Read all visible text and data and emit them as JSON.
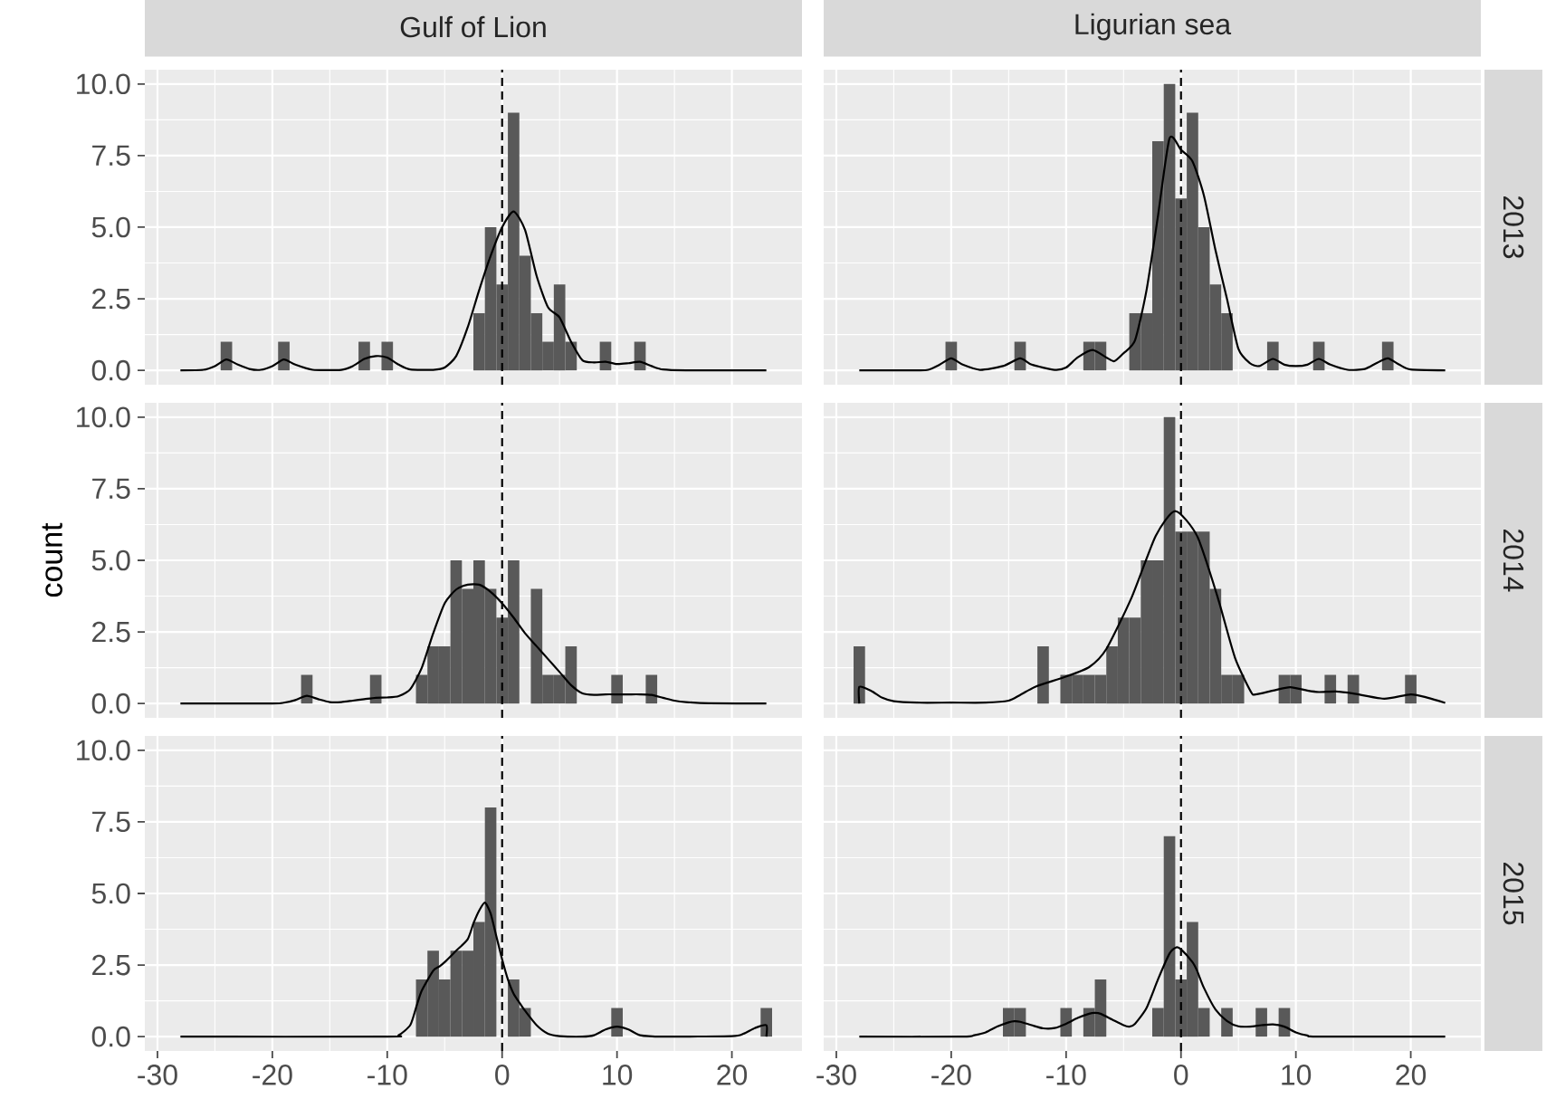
{
  "chart_data": [
    {
      "type": "histogram",
      "title": "Gulf of Lion",
      "xlim": [
        -31.1,
        26.1
      ],
      "ylim": [
        -0.5,
        10.5
      ],
      "xticks": [
        -30,
        -20,
        -10,
        0,
        10,
        20
      ],
      "yticks": [
        {
          "value": 0,
          "label": "0.0"
        },
        {
          "value": 2.5,
          "label": "2.5"
        },
        {
          "value": 5,
          "label": "5.0"
        },
        {
          "value": 7.5,
          "label": "7.5"
        },
        {
          "value": 10,
          "label": "10.0"
        }
      ],
      "tick_labels": "y",
      "grid": true,
      "ref_lines": [
        {
          "axis": "x",
          "value": 0,
          "color": "#000000",
          "line_style": "dashed"
        }
      ],
      "series": [
        {
          "type": "histogram",
          "color": "#595959",
          "bins": [
            -28.5,
            -27.5,
            -26.5,
            -25.5,
            -24.5,
            -23.5,
            -22.5,
            -21.5,
            -20.5,
            -19.5,
            -18.5,
            -17.5,
            -16.5,
            -15.5,
            -14.5,
            -13.5,
            -12.5,
            -11.5,
            -10.5,
            -9.5,
            -8.5,
            -7.5,
            -6.5,
            -5.5,
            -4.5,
            -3.5,
            -2.5,
            -1.5,
            -0.5,
            0.5,
            1.5,
            2.5,
            3.5,
            4.5,
            5.5,
            6.5,
            7.5,
            8.5,
            9.5,
            10.5,
            11.5,
            12.5,
            13.5,
            14.5,
            15.5,
            16.5,
            17.5,
            18.5,
            19.5,
            20.5,
            21.5,
            22.5,
            23.5
          ],
          "values": [
            0,
            0,
            0,
            0,
            1,
            0,
            0,
            0,
            0,
            1,
            0,
            0,
            0,
            0,
            0,
            0,
            1,
            0,
            1,
            0,
            0,
            0,
            0,
            0,
            0,
            0,
            2,
            5,
            3,
            9,
            4,
            2,
            1,
            3,
            1,
            0,
            0,
            1,
            0,
            0,
            1,
            0,
            0,
            0,
            0,
            0,
            0,
            0,
            0,
            0,
            0,
            0
          ]
        },
        {
          "type": "line",
          "color": "#000000",
          "x": [
            -28,
            -26,
            -25,
            -24,
            -23,
            -22,
            -21,
            -20,
            -19,
            -18,
            -16.5,
            -14,
            -13,
            -12,
            -11,
            -10,
            -9,
            -8,
            -6,
            -5,
            -4,
            -3,
            -2,
            -1,
            0,
            1,
            2,
            3,
            4,
            5,
            6,
            7,
            8,
            9,
            10,
            11,
            12,
            13,
            14,
            16,
            23
          ],
          "values": [
            0,
            0.02,
            0.15,
            0.38,
            0.2,
            0.05,
            0.02,
            0.15,
            0.38,
            0.2,
            0.02,
            0.02,
            0.15,
            0.4,
            0.5,
            0.45,
            0.2,
            0.03,
            0.02,
            0.1,
            0.5,
            1.5,
            2.8,
            4.0,
            5.0,
            5.55,
            4.9,
            3.3,
            2.2,
            1.85,
            1.0,
            0.35,
            0.28,
            0.3,
            0.22,
            0.25,
            0.3,
            0.15,
            0.03,
            0,
            0
          ]
        }
      ]
    },
    {
      "type": "histogram",
      "title": "Ligurian sea",
      "y2label": "2013",
      "xlim": [
        -31.1,
        26.1
      ],
      "ylim": [
        -0.5,
        10.5
      ],
      "xticks": [
        -30,
        -20,
        -10,
        0,
        10,
        20
      ],
      "yticks": [
        0,
        2.5,
        5,
        7.5,
        10
      ],
      "tick_labels": false,
      "grid": true,
      "ref_lines": [
        {
          "axis": "x",
          "value": 0,
          "color": "#000000",
          "line_style": "dashed"
        }
      ],
      "series": [
        {
          "type": "histogram",
          "color": "#595959",
          "bins": [
            -28.5,
            -27.5,
            -26.5,
            -25.5,
            -24.5,
            -23.5,
            -22.5,
            -21.5,
            -20.5,
            -19.5,
            -18.5,
            -17.5,
            -16.5,
            -15.5,
            -14.5,
            -13.5,
            -12.5,
            -11.5,
            -10.5,
            -9.5,
            -8.5,
            -7.5,
            -6.5,
            -5.5,
            -4.5,
            -3.5,
            -2.5,
            -1.5,
            -0.5,
            0.5,
            1.5,
            2.5,
            3.5,
            4.5,
            5.5,
            6.5,
            7.5,
            8.5,
            9.5,
            10.5,
            11.5,
            12.5,
            13.5,
            14.5,
            15.5,
            16.5,
            17.5,
            18.5,
            19.5,
            20.5,
            21.5,
            22.5,
            23.5
          ],
          "values": [
            0,
            0,
            0,
            0,
            0,
            0,
            0,
            0,
            1,
            0,
            0,
            0,
            0,
            0,
            1,
            0,
            0,
            0,
            0,
            0,
            1,
            1,
            0,
            0,
            2,
            2,
            8,
            10,
            6,
            9,
            5,
            3,
            2,
            0,
            0,
            0,
            1,
            0,
            0,
            0,
            1,
            0,
            0,
            0,
            0,
            0,
            1,
            0,
            0,
            0,
            0,
            0
          ]
        },
        {
          "type": "line",
          "color": "#000000",
          "x": [
            -28,
            -23,
            -22,
            -21,
            -20,
            -19,
            -17.5,
            -15.5,
            -14,
            -13,
            -11,
            -10,
            -9,
            -7.7,
            -6.5,
            -5.8,
            -5,
            -4,
            -3,
            -2,
            -1,
            0,
            1,
            2,
            3,
            4,
            5,
            6,
            6.8,
            8,
            9,
            10,
            11,
            12,
            13,
            14.5,
            16,
            17,
            18,
            19,
            20,
            23
          ],
          "values": [
            0,
            0,
            0.02,
            0.2,
            0.42,
            0.2,
            0.02,
            0.15,
            0.42,
            0.2,
            0.02,
            0.1,
            0.45,
            0.71,
            0.45,
            0.32,
            0.6,
            1.05,
            2.8,
            5.4,
            8.1,
            7.7,
            7.3,
            6.1,
            4.2,
            2.5,
            0.75,
            0.25,
            0.15,
            0.4,
            0.2,
            0.15,
            0.2,
            0.4,
            0.2,
            0.02,
            0.05,
            0.25,
            0.42,
            0.2,
            0.03,
            0
          ]
        }
      ]
    },
    {
      "type": "histogram",
      "ylabel": "count",
      "xlim": [
        -31.1,
        26.1
      ],
      "ylim": [
        -0.5,
        10.5
      ],
      "xticks": [
        -30,
        -20,
        -10,
        0,
        10,
        20
      ],
      "yticks": [
        {
          "value": 0,
          "label": "0.0"
        },
        {
          "value": 2.5,
          "label": "2.5"
        },
        {
          "value": 5,
          "label": "5.0"
        },
        {
          "value": 7.5,
          "label": "7.5"
        },
        {
          "value": 10,
          "label": "10.0"
        }
      ],
      "tick_labels": "y",
      "grid": true,
      "ref_lines": [
        {
          "axis": "x",
          "value": 0,
          "color": "#000000",
          "line_style": "dashed"
        }
      ],
      "series": [
        {
          "type": "histogram",
          "color": "#595959",
          "bins": [
            -28.5,
            -27.5,
            -26.5,
            -25.5,
            -24.5,
            -23.5,
            -22.5,
            -21.5,
            -20.5,
            -19.5,
            -18.5,
            -17.5,
            -16.5,
            -15.5,
            -14.5,
            -13.5,
            -12.5,
            -11.5,
            -10.5,
            -9.5,
            -8.5,
            -7.5,
            -6.5,
            -5.5,
            -4.5,
            -3.5,
            -2.5,
            -1.5,
            -0.5,
            0.5,
            1.5,
            2.5,
            3.5,
            4.5,
            5.5,
            6.5,
            7.5,
            8.5,
            9.5,
            10.5,
            11.5,
            12.5,
            13.5,
            14.5,
            15.5,
            16.5,
            17.5,
            18.5,
            19.5,
            20.5,
            21.5,
            22.5,
            23.5
          ],
          "values": [
            0,
            0,
            0,
            0,
            0,
            0,
            0,
            0,
            0,
            0,
            0,
            1,
            0,
            0,
            0,
            0,
            0,
            1,
            0,
            0,
            0,
            1,
            2,
            2,
            5,
            4,
            5,
            4,
            3,
            5,
            0,
            4,
            1,
            1,
            2,
            0,
            0,
            0,
            1,
            0,
            0,
            1,
            0,
            0,
            0,
            0,
            0,
            0,
            0,
            0,
            0,
            0
          ]
        },
        {
          "type": "line",
          "color": "#000000",
          "x": [
            -28,
            -20,
            -19,
            -18,
            -17,
            -16,
            -15,
            -14,
            -13,
            -12,
            -11,
            -10,
            -9,
            -8,
            -7,
            -6,
            -5,
            -4,
            -3,
            -2,
            -1,
            0,
            1,
            2,
            3,
            4,
            5,
            6,
            7,
            8,
            9,
            10,
            11,
            12,
            13,
            14,
            15,
            16,
            18,
            23
          ],
          "values": [
            0,
            0,
            0.03,
            0.12,
            0.27,
            0.15,
            0.05,
            0.05,
            0.1,
            0.15,
            0.2,
            0.21,
            0.26,
            0.5,
            1.24,
            2.45,
            3.5,
            3.98,
            4.15,
            4.15,
            3.9,
            3.5,
            3.0,
            2.45,
            2.0,
            1.55,
            1.1,
            0.64,
            0.35,
            0.3,
            0.32,
            0.32,
            0.32,
            0.32,
            0.3,
            0.2,
            0.1,
            0.05,
            0.01,
            0
          ]
        }
      ]
    },
    {
      "type": "histogram",
      "y2label": "2014",
      "xlim": [
        -31.1,
        26.1
      ],
      "ylim": [
        -0.5,
        10.5
      ],
      "xticks": [
        -30,
        -20,
        -10,
        0,
        10,
        20
      ],
      "yticks": [
        0,
        2.5,
        5,
        7.5,
        10
      ],
      "tick_labels": false,
      "grid": true,
      "ref_lines": [
        {
          "axis": "x",
          "value": 0,
          "color": "#000000",
          "line_style": "dashed"
        }
      ],
      "series": [
        {
          "type": "histogram",
          "color": "#595959",
          "bins": [
            -28.5,
            -27.5,
            -26.5,
            -25.5,
            -24.5,
            -23.5,
            -22.5,
            -21.5,
            -20.5,
            -19.5,
            -18.5,
            -17.5,
            -16.5,
            -15.5,
            -14.5,
            -13.5,
            -12.5,
            -11.5,
            -10.5,
            -9.5,
            -8.5,
            -7.5,
            -6.5,
            -5.5,
            -4.5,
            -3.5,
            -2.5,
            -1.5,
            -0.5,
            0.5,
            1.5,
            2.5,
            3.5,
            4.5,
            5.5,
            6.5,
            7.5,
            8.5,
            9.5,
            10.5,
            11.5,
            12.5,
            13.5,
            14.5,
            15.5,
            16.5,
            17.5,
            18.5,
            19.5,
            20.5,
            21.5,
            22.5,
            23.5
          ],
          "values": [
            2,
            0,
            0,
            0,
            0,
            0,
            0,
            0,
            0,
            0,
            0,
            0,
            0,
            0,
            0,
            0,
            2,
            0,
            1,
            1,
            1,
            1,
            2,
            3,
            3,
            5,
            5,
            10,
            6,
            6,
            6,
            4,
            1,
            1,
            0,
            0,
            0,
            1,
            1,
            0,
            0,
            1,
            0,
            1,
            0,
            0,
            0,
            0,
            1,
            0,
            0,
            0
          ]
        },
        {
          "type": "line",
          "color": "#000000",
          "x": [
            -28,
            -28,
            -27,
            -26,
            -25,
            -23,
            -20,
            -17,
            -15,
            -14,
            -12.6,
            -10.1,
            -8,
            -6.5,
            -4.3,
            -2.2,
            -0.5,
            1.4,
            3.2,
            4.7,
            6.1,
            6.5,
            8,
            9.5,
            11,
            12,
            13.5,
            15,
            17.7,
            20,
            21.5,
            23
          ],
          "values": [
            0,
            0.58,
            0.45,
            0.2,
            0.08,
            0.03,
            0.03,
            0.03,
            0.1,
            0.3,
            0.6,
            0.93,
            1.27,
            1.9,
            3.7,
            5.85,
            6.72,
            5.85,
            3.7,
            1.6,
            0.4,
            0.32,
            0.45,
            0.57,
            0.45,
            0.4,
            0.42,
            0.35,
            0.17,
            0.32,
            0.2,
            0.02
          ]
        }
      ]
    },
    {
      "type": "histogram",
      "xlim": [
        -31.1,
        26.1
      ],
      "ylim": [
        -0.5,
        10.5
      ],
      "xticks": [
        -30,
        -20,
        -10,
        0,
        10,
        20
      ],
      "yticks": [
        {
          "value": 0,
          "label": "0.0"
        },
        {
          "value": 2.5,
          "label": "2.5"
        },
        {
          "value": 5,
          "label": "5.0"
        },
        {
          "value": 7.5,
          "label": "7.5"
        },
        {
          "value": 10,
          "label": "10.0"
        }
      ],
      "grid": true,
      "ref_lines": [
        {
          "axis": "x",
          "value": 0,
          "color": "#000000",
          "line_style": "dashed"
        }
      ],
      "series": [
        {
          "type": "histogram",
          "color": "#595959",
          "bins": [
            -28.5,
            -27.5,
            -26.5,
            -25.5,
            -24.5,
            -23.5,
            -22.5,
            -21.5,
            -20.5,
            -19.5,
            -18.5,
            -17.5,
            -16.5,
            -15.5,
            -14.5,
            -13.5,
            -12.5,
            -11.5,
            -10.5,
            -9.5,
            -8.5,
            -7.5,
            -6.5,
            -5.5,
            -4.5,
            -3.5,
            -2.5,
            -1.5,
            -0.5,
            0.5,
            1.5,
            2.5,
            3.5,
            4.5,
            5.5,
            6.5,
            7.5,
            8.5,
            9.5,
            10.5,
            11.5,
            12.5,
            13.5,
            14.5,
            15.5,
            16.5,
            17.5,
            18.5,
            19.5,
            20.5,
            21.5,
            22.5,
            23.5
          ],
          "values": [
            0,
            0,
            0,
            0,
            0,
            0,
            0,
            0,
            0,
            0,
            0,
            0,
            0,
            0,
            0,
            0,
            0,
            0,
            0,
            0,
            0,
            2,
            3,
            2,
            3,
            3,
            4,
            8,
            0,
            2,
            1,
            0,
            0,
            0,
            0,
            0,
            0,
            0,
            1,
            0,
            0,
            0,
            0,
            0,
            0,
            0,
            0,
            0,
            0,
            0,
            0,
            1
          ]
        },
        {
          "type": "line",
          "color": "#000000",
          "x": [
            -28,
            -10,
            -9,
            -8,
            -7.5,
            -7,
            -6,
            -5.5,
            -5,
            -4,
            -3,
            -2.5,
            -2,
            -1.5,
            -1,
            -0.5,
            0,
            0.5,
            1,
            1.65,
            2,
            3,
            4,
            5,
            7,
            8,
            9,
            10,
            11,
            12,
            14,
            20,
            21,
            22,
            23,
            23
          ],
          "values": [
            0,
            0,
            0.05,
            0.4,
            1.0,
            1.6,
            2.3,
            2.44,
            2.6,
            3.0,
            3.4,
            3.95,
            4.4,
            4.68,
            4.3,
            3.5,
            2.7,
            2.0,
            1.5,
            1.1,
            0.9,
            0.4,
            0.1,
            0.02,
            0,
            0.05,
            0.25,
            0.35,
            0.25,
            0.05,
            0,
            0.02,
            0.1,
            0.3,
            0.4,
            0
          ]
        }
      ]
    },
    {
      "type": "histogram",
      "y2label": "2015",
      "xlim": [
        -31.1,
        26.1
      ],
      "ylim": [
        -0.5,
        10.5
      ],
      "xticks": [
        -30,
        -20,
        -10,
        0,
        10,
        20
      ],
      "yticks": [
        0,
        2.5,
        5,
        7.5,
        10
      ],
      "tick_labels": "x",
      "grid": true,
      "ref_lines": [
        {
          "axis": "x",
          "value": 0,
          "color": "#000000",
          "line_style": "dashed"
        }
      ],
      "series": [
        {
          "type": "histogram",
          "color": "#595959",
          "bins": [
            -28.5,
            -27.5,
            -26.5,
            -25.5,
            -24.5,
            -23.5,
            -22.5,
            -21.5,
            -20.5,
            -19.5,
            -18.5,
            -17.5,
            -16.5,
            -15.5,
            -14.5,
            -13.5,
            -12.5,
            -11.5,
            -10.5,
            -9.5,
            -8.5,
            -7.5,
            -6.5,
            -5.5,
            -4.5,
            -3.5,
            -2.5,
            -1.5,
            -0.5,
            0.5,
            1.5,
            2.5,
            3.5,
            4.5,
            5.5,
            6.5,
            7.5,
            8.5,
            9.5,
            10.5,
            11.5,
            12.5,
            13.5,
            14.5,
            15.5,
            16.5,
            17.5,
            18.5,
            19.5,
            20.5,
            21.5,
            22.5,
            23.5
          ],
          "values": [
            0,
            0,
            0,
            0,
            0,
            0,
            0,
            0,
            0,
            0,
            0,
            0,
            0,
            1,
            1,
            0,
            0,
            0,
            1,
            0,
            1,
            2,
            0,
            0,
            0,
            0,
            1,
            7,
            2,
            4,
            1,
            0,
            1,
            0,
            0,
            1,
            0,
            1,
            0,
            0,
            0,
            0,
            0,
            0,
            0,
            0,
            0,
            0,
            0,
            0,
            0,
            0
          ]
        },
        {
          "type": "line",
          "color": "#000000",
          "x": [
            -28,
            -19,
            -18,
            -17,
            -16,
            -15,
            -14.5,
            -14,
            -13,
            -12,
            -11,
            -10,
            -9,
            -8,
            -7.5,
            -7,
            -6,
            -5,
            -4.5,
            -4,
            -3,
            -2,
            -1,
            -0.4,
            0,
            1,
            1.4,
            2,
            3,
            4,
            5,
            6,
            7,
            8,
            9,
            10,
            11,
            12,
            23
          ],
          "values": [
            0,
            0,
            0.05,
            0.15,
            0.35,
            0.5,
            0.54,
            0.52,
            0.4,
            0.29,
            0.3,
            0.45,
            0.65,
            0.8,
            0.83,
            0.8,
            0.6,
            0.4,
            0.35,
            0.45,
            1.0,
            2.0,
            2.9,
            3.12,
            3.05,
            2.6,
            2.3,
            1.7,
            0.95,
            0.55,
            0.36,
            0.35,
            0.4,
            0.43,
            0.35,
            0.15,
            0.04,
            0,
            0
          ]
        }
      ]
    }
  ]
}
